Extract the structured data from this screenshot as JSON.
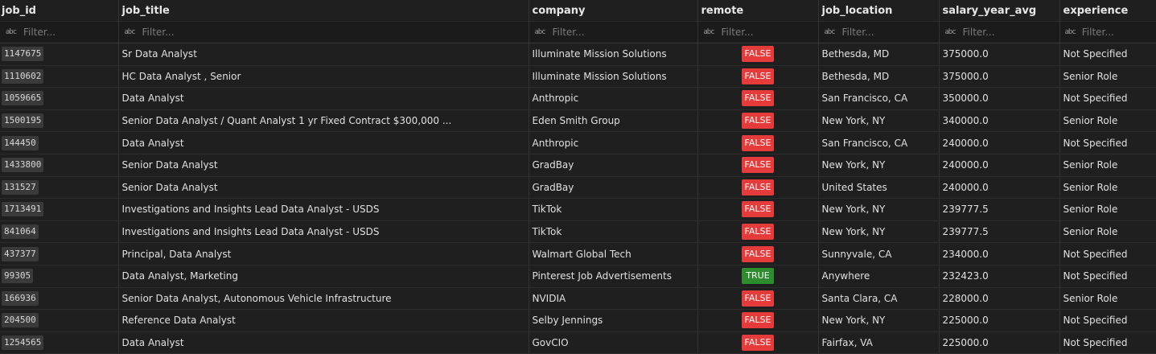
{
  "colors": {
    "false_badge": "#e53b3b",
    "true_badge": "#2e8b2e"
  },
  "columns": [
    {
      "key": "job_id",
      "label": "job_id",
      "filter_icon": "abc-text-icon",
      "filter_placeholder": "Filter..."
    },
    {
      "key": "job_title",
      "label": "job_title",
      "filter_icon": "abc-text-icon",
      "filter_placeholder": "Filter..."
    },
    {
      "key": "company",
      "label": "company",
      "filter_icon": "abc-text-icon",
      "filter_placeholder": "Filter..."
    },
    {
      "key": "remote",
      "label": "remote",
      "filter_icon": "abc-text-icon",
      "filter_placeholder": "Filter..."
    },
    {
      "key": "job_location",
      "label": "job_location",
      "filter_icon": "abc-text-icon",
      "filter_placeholder": "Filter..."
    },
    {
      "key": "salary_year_avg",
      "label": "salary_year_avg",
      "filter_icon": "abc-text-icon",
      "filter_placeholder": "Filter..."
    },
    {
      "key": "experience",
      "label": "experience",
      "filter_icon": "abc-text-icon",
      "filter_placeholder": "Filter..."
    }
  ],
  "filter_icon_text": "abc",
  "rows": [
    {
      "job_id": "1147675",
      "job_title": "Sr Data Analyst",
      "company": "Illuminate Mission Solutions",
      "remote": "FALSE",
      "job_location": "Bethesda, MD",
      "salary_year_avg": "375000.0",
      "experience": "Not Specified"
    },
    {
      "job_id": "1110602",
      "job_title": "HC Data Analyst , Senior",
      "company": "Illuminate Mission Solutions",
      "remote": "FALSE",
      "job_location": "Bethesda, MD",
      "salary_year_avg": "375000.0",
      "experience": "Senior Role"
    },
    {
      "job_id": "1059665",
      "job_title": "Data Analyst",
      "company": "Anthropic",
      "remote": "FALSE",
      "job_location": "San Francisco, CA",
      "salary_year_avg": "350000.0",
      "experience": "Not Specified"
    },
    {
      "job_id": "1500195",
      "job_title": "Senior Data Analyst / Quant Analyst 1 yr Fixed Contract $300,000 ...",
      "company": "Eden Smith Group",
      "remote": "FALSE",
      "job_location": "New York, NY",
      "salary_year_avg": "340000.0",
      "experience": "Senior Role"
    },
    {
      "job_id": "144450",
      "job_title": "Data Analyst",
      "company": "Anthropic",
      "remote": "FALSE",
      "job_location": "San Francisco, CA",
      "salary_year_avg": "240000.0",
      "experience": "Not Specified"
    },
    {
      "job_id": "1433800",
      "job_title": "Senior Data Analyst",
      "company": "GradBay",
      "remote": "FALSE",
      "job_location": "New York, NY",
      "salary_year_avg": "240000.0",
      "experience": "Senior Role"
    },
    {
      "job_id": "131527",
      "job_title": "Senior Data Analyst",
      "company": "GradBay",
      "remote": "FALSE",
      "job_location": "United States",
      "salary_year_avg": "240000.0",
      "experience": "Senior Role"
    },
    {
      "job_id": "1713491",
      "job_title": "Investigations and Insights Lead Data Analyst - USDS",
      "company": "TikTok",
      "remote": "FALSE",
      "job_location": "New York, NY",
      "salary_year_avg": "239777.5",
      "experience": "Senior Role"
    },
    {
      "job_id": "841064",
      "job_title": "Investigations and Insights Lead Data Analyst - USDS",
      "company": "TikTok",
      "remote": "FALSE",
      "job_location": "New York, NY",
      "salary_year_avg": "239777.5",
      "experience": "Senior Role"
    },
    {
      "job_id": "437377",
      "job_title": "Principal, Data Analyst",
      "company": "Walmart Global Tech",
      "remote": "FALSE",
      "job_location": "Sunnyvale, CA",
      "salary_year_avg": "234000.0",
      "experience": "Not Specified"
    },
    {
      "job_id": "99305",
      "job_title": "Data Analyst, Marketing",
      "company": "Pinterest Job Advertisements",
      "remote": "TRUE",
      "job_location": "Anywhere",
      "salary_year_avg": "232423.0",
      "experience": "Not Specified"
    },
    {
      "job_id": "166936",
      "job_title": "Senior Data Analyst, Autonomous Vehicle Infrastructure",
      "company": "NVIDIA",
      "remote": "FALSE",
      "job_location": "Santa Clara, CA",
      "salary_year_avg": "228000.0",
      "experience": "Senior Role"
    },
    {
      "job_id": "204500",
      "job_title": "Reference Data Analyst",
      "company": "Selby Jennings",
      "remote": "FALSE",
      "job_location": "New York, NY",
      "salary_year_avg": "225000.0",
      "experience": "Not Specified"
    },
    {
      "job_id": "1254565",
      "job_title": "Data Analyst",
      "company": "GovCIO",
      "remote": "FALSE",
      "job_location": "Fairfax, VA",
      "salary_year_avg": "225000.0",
      "experience": "Not Specified"
    }
  ]
}
